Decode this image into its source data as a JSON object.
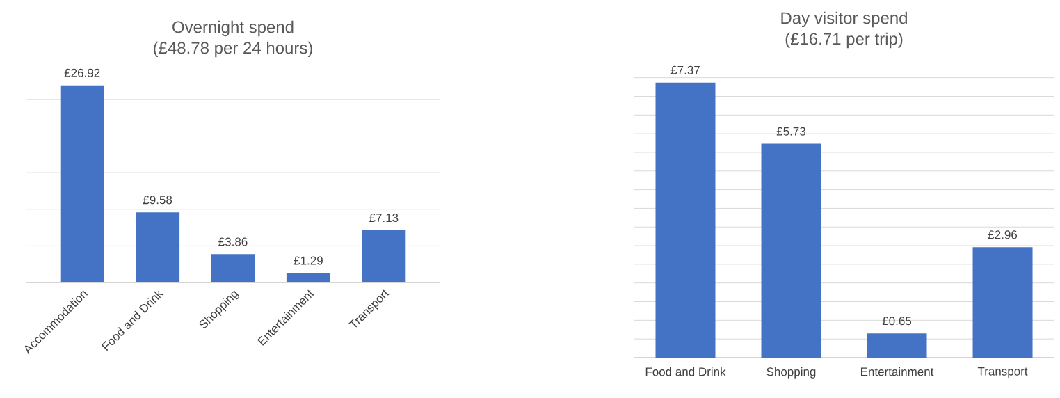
{
  "chart_data": [
    {
      "type": "bar",
      "title": "Overnight spend",
      "subtitle": "(£48.78 per 24 hours)",
      "categories": [
        "Accommodation",
        "Food and Drink",
        "Shopping",
        "Entertainment",
        "Transport"
      ],
      "values": [
        26.92,
        9.58,
        3.86,
        1.29,
        7.13
      ],
      "value_labels": [
        "£26.92",
        "£9.58",
        "£3.86",
        "£1.29",
        "£7.13"
      ],
      "color": "#4472c4",
      "tick_labels": "x",
      "grid": "y"
    },
    {
      "type": "bar",
      "title": "Day visitor spend",
      "subtitle": "(£16.71 per trip)",
      "categories": [
        "Food and Drink",
        "Shopping",
        "Entertainment",
        "Transport"
      ],
      "values": [
        7.37,
        5.73,
        0.65,
        2.96
      ],
      "value_labels": [
        "£7.37",
        "£5.73",
        "£0.65",
        "£2.96"
      ],
      "color": "#4472c4",
      "tick_labels": "x",
      "grid": "y"
    }
  ]
}
